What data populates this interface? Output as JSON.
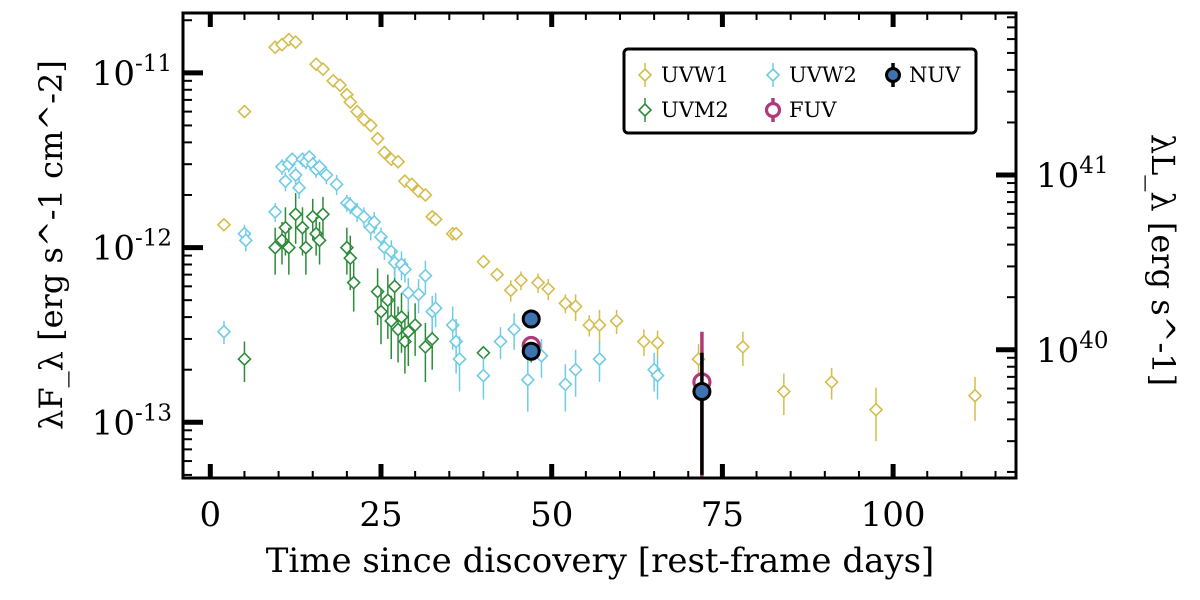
{
  "chart_data": {
    "type": "scatter",
    "xlabel": "Time since discovery [rest-frame days]",
    "ylabel_left": "λF_λ [erg s^-1 cm^-2]",
    "ylabel_right": "λL_λ [erg s^-1]",
    "x_scale": "linear",
    "y_scale": "log",
    "xlim": [
      -4,
      118
    ],
    "ylim": [
      4.8e-14,
      2.2e-11
    ],
    "x_ticks": [
      0,
      25,
      50,
      75,
      100
    ],
    "y_ticks_left": [
      {
        "value": 1e-13,
        "base": "10",
        "exp": "-13"
      },
      {
        "value": 1e-12,
        "base": "10",
        "exp": "-12"
      },
      {
        "value": 1e-11,
        "base": "10",
        "exp": "-11"
      }
    ],
    "y_ticks_right": [
      {
        "value": 2.6e-13,
        "base": "10",
        "exp": "40"
      },
      {
        "value": 2.6e-12,
        "base": "10",
        "exp": "41"
      }
    ],
    "legend_position": "top-right",
    "series": [
      {
        "name": "UVW1",
        "color": "#d4bd4a",
        "marker": "diamond-open",
        "points": [
          [
            2,
            1.35e-12,
            8e-14
          ],
          [
            5,
            6e-12,
            4e-13
          ],
          [
            9.5,
            1.4e-11,
            1e-12
          ],
          [
            10.5,
            1.45e-11,
            1e-12
          ],
          [
            11.5,
            1.55e-11,
            1e-12
          ],
          [
            12.5,
            1.5e-11,
            1e-12
          ],
          [
            15.5,
            1.12e-11,
            8e-13
          ],
          [
            16.5,
            1.05e-11,
            8e-13
          ],
          [
            18,
            9e-12,
            5e-13
          ],
          [
            19,
            8.5e-12,
            5e-13
          ],
          [
            20,
            7.5e-12,
            5e-13
          ],
          [
            20.5,
            6.8e-12,
            4e-13
          ],
          [
            21.5,
            6e-12,
            4e-13
          ],
          [
            22.5,
            5.4e-12,
            3e-13
          ],
          [
            23.5,
            5e-12,
            3e-13
          ],
          [
            24.5,
            4.2e-12,
            3e-13
          ],
          [
            25.5,
            3.5e-12,
            2.5e-13
          ],
          [
            26.5,
            3.2e-12,
            2e-13
          ],
          [
            27.5,
            3.1e-12,
            2e-13
          ],
          [
            28.5,
            2.4e-12,
            1.5e-13
          ],
          [
            29.5,
            2.3e-12,
            1.5e-13
          ],
          [
            30.5,
            2.1e-12,
            1.5e-13
          ],
          [
            31.5,
            2e-12,
            1.5e-13
          ],
          [
            32.5,
            1.5e-12,
            1e-13
          ],
          [
            33,
            1.45e-12,
            1e-13
          ],
          [
            35.5,
            1.2e-12,
            1e-13
          ],
          [
            36,
            1.2e-12,
            1e-13
          ],
          [
            40,
            8.3e-13,
            6e-14
          ],
          [
            42,
            7e-13,
            6e-14
          ],
          [
            44,
            5.7e-13,
            8e-14
          ],
          [
            45.5,
            6.5e-13,
            8e-14
          ],
          [
            48,
            6.3e-13,
            8e-14
          ],
          [
            49.5,
            5.8e-13,
            8e-14
          ],
          [
            52,
            4.8e-13,
            6e-14
          ],
          [
            53.5,
            4.6e-13,
            8e-14
          ],
          [
            55.5,
            3.6e-13,
            5e-14
          ],
          [
            57,
            3.6e-13,
            8e-14
          ],
          [
            59.5,
            3.8e-13,
            6e-14
          ],
          [
            63.5,
            2.9e-13,
            5e-14
          ],
          [
            65.5,
            2.85e-13,
            5e-14
          ],
          [
            71.5,
            2.3e-13,
            5e-14
          ],
          [
            78,
            2.7e-13,
            6e-14
          ],
          [
            84,
            1.5e-13,
            4e-14
          ],
          [
            91,
            1.7e-13,
            3.5e-14
          ],
          [
            97.5,
            1.18e-13,
            4e-14
          ],
          [
            112,
            1.42e-13,
            4e-14
          ]
        ]
      },
      {
        "name": "UVM2",
        "color": "#2e8b3a",
        "marker": "diamond-open",
        "points": [
          [
            5,
            2.3e-13,
            6e-14
          ],
          [
            9.5,
            1e-12,
            3e-13
          ],
          [
            10.5,
            1.1e-12,
            3e-13
          ],
          [
            11,
            1.3e-12,
            4e-13
          ],
          [
            11.5,
            1e-12,
            3e-13
          ],
          [
            12.5,
            1.55e-12,
            5e-13
          ],
          [
            13.5,
            1.3e-12,
            4e-13
          ],
          [
            14,
            1e-12,
            3e-13
          ],
          [
            15,
            1.5e-12,
            4e-13
          ],
          [
            15.5,
            1.2e-12,
            3e-13
          ],
          [
            16,
            1.1e-12,
            3e-13
          ],
          [
            16.5,
            1.55e-12,
            4e-13
          ],
          [
            20,
            1e-12,
            3e-13
          ],
          [
            20.5,
            8.7e-13,
            3e-13
          ],
          [
            21,
            6.3e-13,
            2e-13
          ],
          [
            24.5,
            5.6e-13,
            2e-13
          ],
          [
            25,
            4.3e-13,
            1.5e-13
          ],
          [
            26,
            5e-13,
            2e-13
          ],
          [
            26.5,
            3.8e-13,
            1.5e-13
          ],
          [
            27,
            6e-13,
            2e-13
          ],
          [
            27.5,
            3.4e-13,
            1.2e-13
          ],
          [
            28,
            4e-13,
            1.5e-13
          ],
          [
            28.5,
            2.9e-13,
            1e-13
          ],
          [
            29,
            3.3e-13,
            1.2e-13
          ],
          [
            30,
            3.6e-13,
            1.2e-13
          ],
          [
            31.5,
            2.7e-13,
            1e-13
          ],
          [
            32.5,
            3e-13,
            1e-13
          ],
          [
            40,
            2.5e-13,
            6e-15
          ],
          [
            47,
            2.5e-13,
            3e-14
          ]
        ]
      },
      {
        "name": "UVW2",
        "color": "#6fcce6",
        "marker": "diamond-open",
        "points": [
          [
            2,
            3.3e-13,
            5e-14
          ],
          [
            5,
            1.2e-12,
            1.5e-13
          ],
          [
            5.2,
            1.1e-12,
            1.5e-13
          ],
          [
            9.5,
            1.6e-12,
            2e-13
          ],
          [
            10.5,
            2.9e-12,
            3e-13
          ],
          [
            11.5,
            3e-12,
            3e-13
          ],
          [
            11,
            2.4e-12,
            3e-13
          ],
          [
            12,
            3.2e-12,
            3e-13
          ],
          [
            12.5,
            2.6e-12,
            3e-13
          ],
          [
            13,
            2.2e-12,
            3e-13
          ],
          [
            13.5,
            3.2e-12,
            3e-13
          ],
          [
            14,
            3.1e-12,
            3e-13
          ],
          [
            14.5,
            3.3e-12,
            3e-13
          ],
          [
            15,
            3e-12,
            3e-13
          ],
          [
            15.5,
            2.8e-12,
            3e-13
          ],
          [
            16,
            2.9e-12,
            3e-13
          ],
          [
            17,
            2.6e-12,
            3e-13
          ],
          [
            18.5,
            2.3e-12,
            3e-13
          ],
          [
            20,
            1.8e-12,
            2e-13
          ],
          [
            20.5,
            1.75e-12,
            2e-13
          ],
          [
            21.5,
            1.6e-12,
            2e-13
          ],
          [
            22.5,
            1.5e-12,
            2e-13
          ],
          [
            23.5,
            1.3e-12,
            2e-13
          ],
          [
            24,
            1.4e-12,
            2e-13
          ],
          [
            25,
            1.15e-12,
            1.5e-13
          ],
          [
            25.5,
            1e-12,
            1.5e-13
          ],
          [
            26.5,
            9.5e-13,
            1.5e-13
          ],
          [
            27,
            8.2e-13,
            1.5e-13
          ],
          [
            28,
            8e-13,
            1.5e-13
          ],
          [
            28.5,
            7.5e-13,
            1.2e-13
          ],
          [
            29,
            5.5e-13,
            1.2e-13
          ],
          [
            30.5,
            5.4e-13,
            1.2e-13
          ],
          [
            31.5,
            6.9e-13,
            1.5e-13
          ],
          [
            32.5,
            4.3e-13,
            1e-13
          ],
          [
            33,
            4.5e-13,
            1e-13
          ],
          [
            35.5,
            3.6e-13,
            1e-13
          ],
          [
            36,
            2.9e-13,
            1e-13
          ],
          [
            36.5,
            2.3e-13,
            8e-14
          ],
          [
            40,
            1.85e-13,
            5e-14
          ],
          [
            42.5,
            2.9e-13,
            6e-14
          ],
          [
            44.5,
            3.4e-13,
            8e-14
          ],
          [
            46.5,
            1.75e-13,
            6e-14
          ],
          [
            48.5,
            2.4e-13,
            6e-14
          ],
          [
            52,
            1.65e-13,
            5e-14
          ],
          [
            53.5,
            2e-13,
            6e-14
          ],
          [
            57,
            2.3e-13,
            6e-14
          ],
          [
            65,
            2e-13,
            5e-14
          ],
          [
            65.5,
            1.85e-13,
            5e-14
          ],
          [
            72,
            1.6e-13,
            4e-14
          ]
        ]
      },
      {
        "name": "FUV",
        "color": "#b03a78",
        "marker": "circle-open",
        "points": [
          [
            47,
            2.75e-13,
            3.5e-14
          ],
          [
            72,
            1.7e-13,
            1.6e-13
          ]
        ]
      },
      {
        "name": "NUV",
        "color": "#3d73b0",
        "marker": "circle-filled",
        "points": [
          [
            47,
            3.9e-13,
            2e-14
          ],
          [
            47,
            2.55e-13,
            2e-14
          ],
          [
            72,
            1.5e-13,
            1e-13
          ]
        ]
      }
    ]
  }
}
